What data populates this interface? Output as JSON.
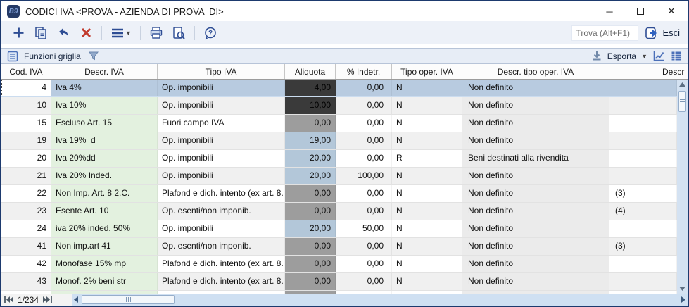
{
  "window": {
    "title": "CODICI IVA <PROVA - AZIENDA DI PROVA  DI>",
    "app_badge": "B9",
    "controls": {
      "minimize": "─",
      "maximize": "",
      "close": "✕"
    }
  },
  "toolbar": {
    "buttons": [
      "new",
      "copy",
      "undo",
      "delete",
      "menu",
      "print",
      "preview",
      "help"
    ],
    "find_placeholder": "Trova (Alt+F1)",
    "exit_label": "Esci"
  },
  "gridbar": {
    "functions_label": "Funzioni griglia",
    "export_label": "Esporta"
  },
  "grid": {
    "columns": [
      "Cod. IVA",
      "Descr. IVA",
      "Tipo IVA",
      "Aliquota",
      "% Indetr.",
      "Tipo oper. IVA",
      "Descr. tipo oper. IVA",
      "Descr"
    ],
    "rows": [
      {
        "cod": "4",
        "descr": "Iva 4%",
        "tipo": "Op. imponibili",
        "aliquota": "4,00",
        "indetr": "0,00",
        "tipo_oper": "N",
        "descr_tipo_oper": "Non definito",
        "extra": "",
        "aliquota_level": "dark",
        "selected": true
      },
      {
        "cod": "10",
        "descr": "Iva 10%",
        "tipo": "Op. imponibili",
        "aliquota": "10,00",
        "indetr": "0,00",
        "tipo_oper": "N",
        "descr_tipo_oper": "Non definito",
        "extra": "",
        "aliquota_level": "dark"
      },
      {
        "cod": "15",
        "descr": "Escluso Art. 15",
        "tipo": "Fuori campo IVA",
        "aliquota": "0,00",
        "indetr": "0,00",
        "tipo_oper": "N",
        "descr_tipo_oper": "Non definito",
        "extra": "",
        "aliquota_level": "mid"
      },
      {
        "cod": "19",
        "descr": "Iva 19%  d",
        "tipo": "Op. imponibili",
        "aliquota": "19,00",
        "indetr": "0,00",
        "tipo_oper": "N",
        "descr_tipo_oper": "Non definito",
        "extra": "",
        "aliquota_level": "normal"
      },
      {
        "cod": "20",
        "descr": "Iva 20%dd",
        "tipo": "Op. imponibili",
        "aliquota": "20,00",
        "indetr": "0,00",
        "tipo_oper": "R",
        "descr_tipo_oper": "Beni destinati alla rivendita",
        "extra": "",
        "aliquota_level": "normal"
      },
      {
        "cod": "21",
        "descr": "Iva 20% Inded.",
        "tipo": "Op. imponibili",
        "aliquota": "20,00",
        "indetr": "100,00",
        "tipo_oper": "N",
        "descr_tipo_oper": "Non definito",
        "extra": "",
        "aliquota_level": "normal"
      },
      {
        "cod": "22",
        "descr": "Non Imp. Art. 8 2.C.",
        "tipo": "Plafond e dich. intento (ex art. 8...",
        "aliquota": "0,00",
        "indetr": "0,00",
        "tipo_oper": "N",
        "descr_tipo_oper": "Non definito",
        "extra": "(3)",
        "aliquota_level": "mid"
      },
      {
        "cod": "23",
        "descr": "Esente Art. 10",
        "tipo": "Op. esenti/non imponib.",
        "aliquota": "0,00",
        "indetr": "0,00",
        "tipo_oper": "N",
        "descr_tipo_oper": "Non definito",
        "extra": "(4)",
        "aliquota_level": "mid"
      },
      {
        "cod": "24",
        "descr": "iva 20% inded. 50%",
        "tipo": "Op. imponibili",
        "aliquota": "20,00",
        "indetr": "50,00",
        "tipo_oper": "N",
        "descr_tipo_oper": "Non definito",
        "extra": "",
        "aliquota_level": "normal"
      },
      {
        "cod": "41",
        "descr": "Non imp.art 41",
        "tipo": "Op. esenti/non imponib.",
        "aliquota": "0,00",
        "indetr": "0,00",
        "tipo_oper": "N",
        "descr_tipo_oper": "Non definito",
        "extra": "(3)",
        "aliquota_level": "mid"
      },
      {
        "cod": "42",
        "descr": "Monofase 15% mp",
        "tipo": "Plafond e dich. intento (ex art. 8...",
        "aliquota": "0,00",
        "indetr": "0,00",
        "tipo_oper": "N",
        "descr_tipo_oper": "Non definito",
        "extra": "",
        "aliquota_level": "mid"
      },
      {
        "cod": "43",
        "descr": "Monof. 2% beni str",
        "tipo": "Plafond e dich. intento (ex art. 8...",
        "aliquota": "0,00",
        "indetr": "0,00",
        "tipo_oper": "N",
        "descr_tipo_oper": "Non definito",
        "extra": "",
        "aliquota_level": "mid"
      },
      {
        "cod": "",
        "descr": "",
        "tipo": "",
        "aliquota": "",
        "indetr": "",
        "tipo_oper": "",
        "descr_tipo_oper": "",
        "extra": "",
        "aliquota_level": "mid",
        "partial": true
      }
    ]
  },
  "statusbar": {
    "record_position": "1/234"
  },
  "colors": {
    "window_border": "#1d3a6e",
    "accent_navy": "#2e4d94",
    "delete_red": "#c23b2e",
    "selected_row": "#b8cbe0",
    "descr_tint": "#e3f1df",
    "col_tint_gray": "#ebebeb",
    "aliquota_normal": "#b3c7d9",
    "aliquota_zero": "#9d9d9d",
    "aliquota_dark": "#3a3a3a",
    "row_stripe": "#f0f0f0",
    "scroll_track": "#d4e2f2"
  }
}
